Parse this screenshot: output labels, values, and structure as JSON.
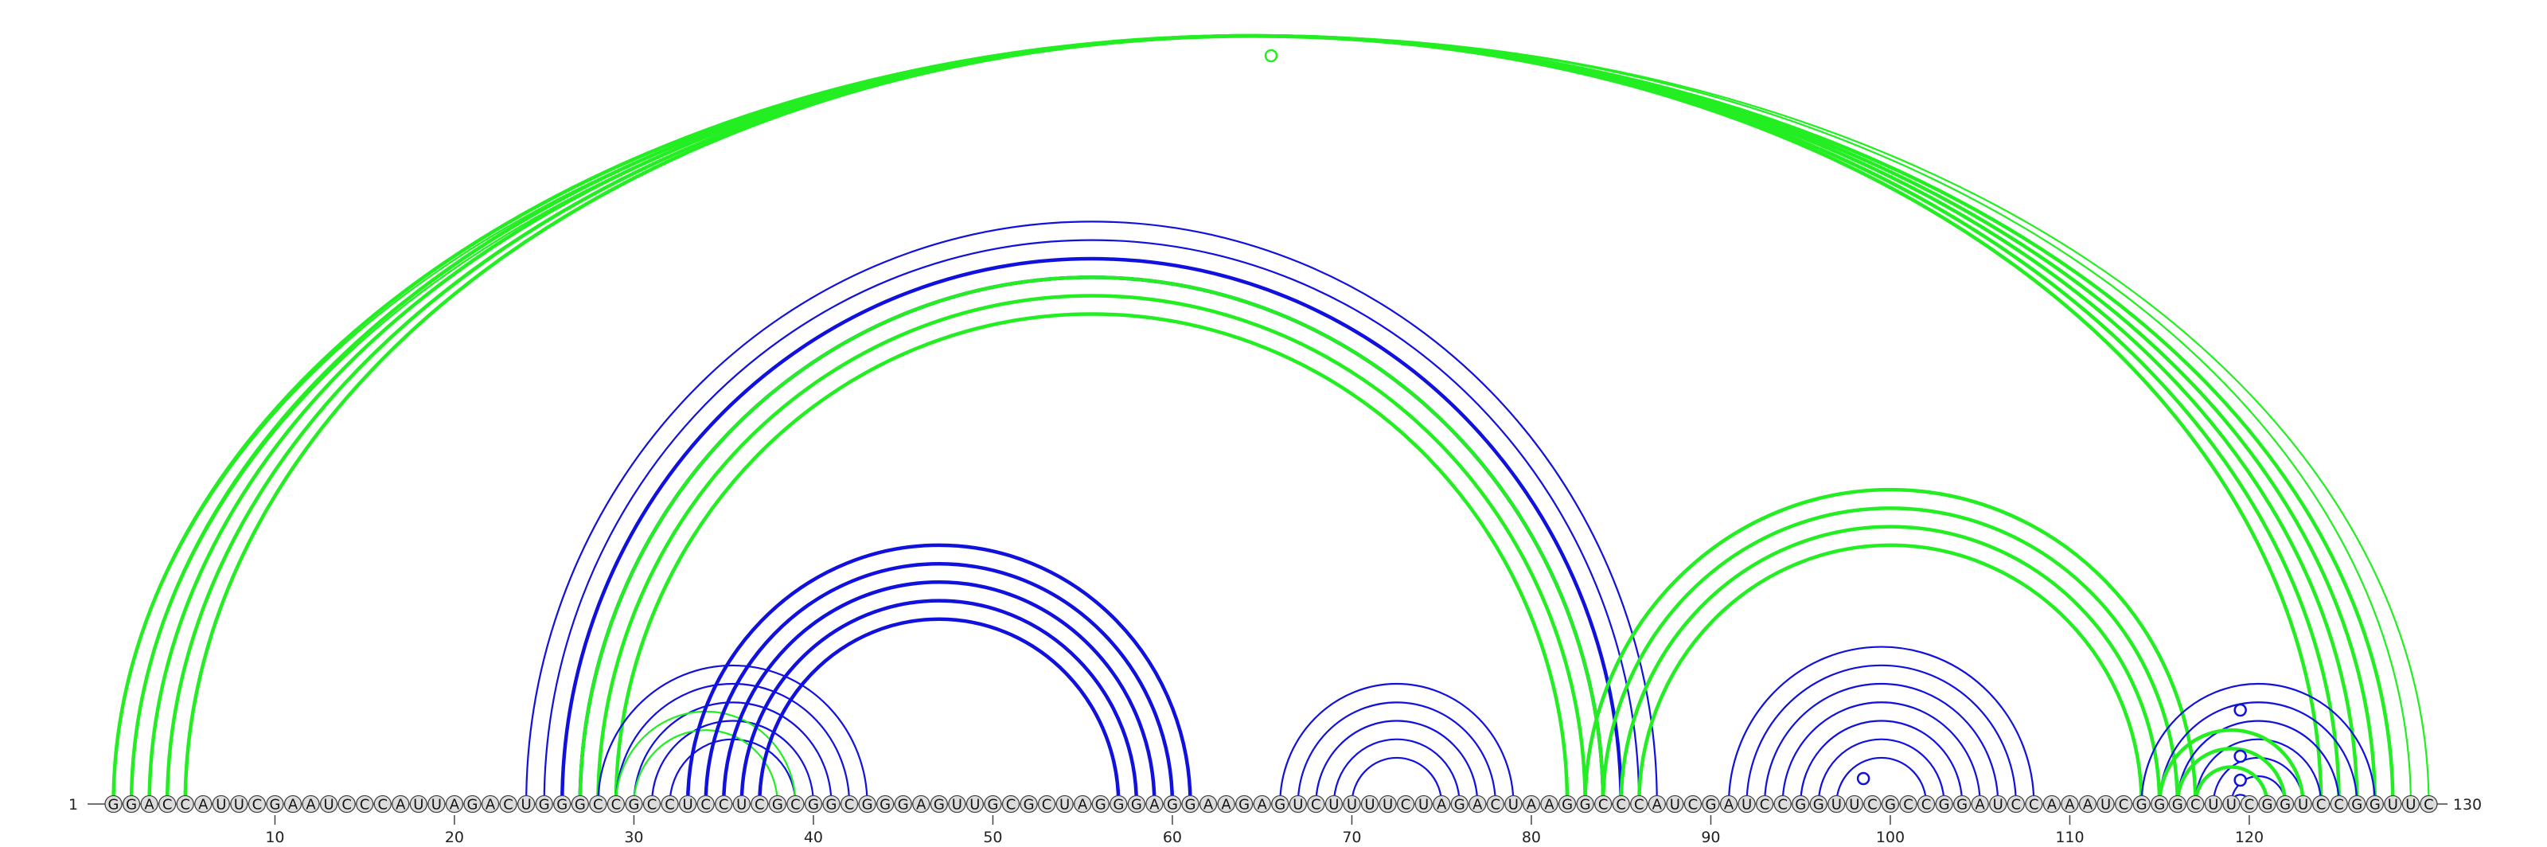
{
  "sequence": "GGACCAUUCGAAUCCCAUUAGACUGGGCCGCCUCCUCGCGGCGGGAGUUGCGCUAGGGAGGAAGAGUCUUUUCUAGACUAAGGCCCAUCGAUCCGGUUCGCCGGAUCCAAAUCGGGCUUCGGUCCGGUUC",
  "start_label": "1",
  "end_label": "130",
  "tick_labels": [
    "10",
    "20",
    "30",
    "40",
    "50",
    "60",
    "70",
    "80",
    "90",
    "100",
    "110",
    "120"
  ],
  "colors": {
    "green": "#22ee22",
    "blue": "#1111dd",
    "base_fill": "#dddddd"
  },
  "markers": [
    {
      "position": 65.5,
      "color": "green"
    },
    {
      "position": 98.5,
      "color": "blue"
    },
    {
      "position": 119.5,
      "color": "blue"
    },
    {
      "position": 119.5,
      "color": "blue"
    },
    {
      "position": 119.5,
      "color": "blue"
    }
  ],
  "chart_data": {
    "type": "arc-diagram",
    "residues": 130,
    "arcs": [
      {
        "color": "green",
        "weight": "thin",
        "i": 1,
        "j": 130
      },
      {
        "color": "green",
        "weight": "thin",
        "i": 2,
        "j": 129
      },
      {
        "color": "green",
        "weight": "thick",
        "i": 1,
        "j": 128
      },
      {
        "color": "green",
        "weight": "thick",
        "i": 2,
        "j": 127
      },
      {
        "color": "green",
        "weight": "thick",
        "i": 3,
        "j": 126
      },
      {
        "color": "green",
        "weight": "thick",
        "i": 4,
        "j": 125
      },
      {
        "color": "green",
        "weight": "thick",
        "i": 5,
        "j": 124
      },
      {
        "color": "blue",
        "weight": "thin",
        "i": 24,
        "j": 87
      },
      {
        "color": "blue",
        "weight": "thin",
        "i": 25,
        "j": 86
      },
      {
        "color": "blue",
        "weight": "thick",
        "i": 26,
        "j": 85
      },
      {
        "color": "blue",
        "weight": "thick",
        "i": 27,
        "j": 84
      },
      {
        "color": "green",
        "weight": "thick",
        "i": 27,
        "j": 84
      },
      {
        "color": "green",
        "weight": "thick",
        "i": 28,
        "j": 83
      },
      {
        "color": "green",
        "weight": "thick",
        "i": 29,
        "j": 82
      },
      {
        "color": "blue",
        "weight": "thin",
        "i": 28,
        "j": 43
      },
      {
        "color": "blue",
        "weight": "thin",
        "i": 29,
        "j": 42
      },
      {
        "color": "blue",
        "weight": "thin",
        "i": 30,
        "j": 41
      },
      {
        "color": "blue",
        "weight": "thin",
        "i": 31,
        "j": 40
      },
      {
        "color": "blue",
        "weight": "thin",
        "i": 32,
        "j": 39
      },
      {
        "color": "green",
        "weight": "thin",
        "i": 29,
        "j": 39
      },
      {
        "color": "green",
        "weight": "thin",
        "i": 30,
        "j": 38
      },
      {
        "color": "blue",
        "weight": "thick",
        "i": 33,
        "j": 61
      },
      {
        "color": "blue",
        "weight": "thick",
        "i": 34,
        "j": 60
      },
      {
        "color": "blue",
        "weight": "thick",
        "i": 35,
        "j": 59
      },
      {
        "color": "blue",
        "weight": "thick",
        "i": 36,
        "j": 58
      },
      {
        "color": "blue",
        "weight": "thick",
        "i": 37,
        "j": 57
      },
      {
        "color": "blue",
        "weight": "thin",
        "i": 66,
        "j": 79
      },
      {
        "color": "blue",
        "weight": "thin",
        "i": 67,
        "j": 78
      },
      {
        "color": "blue",
        "weight": "thin",
        "i": 68,
        "j": 77
      },
      {
        "color": "blue",
        "weight": "thin",
        "i": 69,
        "j": 76
      },
      {
        "color": "blue",
        "weight": "thin",
        "i": 70,
        "j": 75
      },
      {
        "color": "green",
        "weight": "thick",
        "i": 83,
        "j": 117
      },
      {
        "color": "green",
        "weight": "thick",
        "i": 84,
        "j": 116
      },
      {
        "color": "green",
        "weight": "thick",
        "i": 85,
        "j": 115
      },
      {
        "color": "green",
        "weight": "thick",
        "i": 86,
        "j": 114
      },
      {
        "color": "blue",
        "weight": "thin",
        "i": 91,
        "j": 108
      },
      {
        "color": "blue",
        "weight": "thin",
        "i": 92,
        "j": 107
      },
      {
        "color": "blue",
        "weight": "thin",
        "i": 93,
        "j": 106
      },
      {
        "color": "blue",
        "weight": "thin",
        "i": 94,
        "j": 105
      },
      {
        "color": "blue",
        "weight": "thin",
        "i": 95,
        "j": 104
      },
      {
        "color": "blue",
        "weight": "thin",
        "i": 96,
        "j": 103
      },
      {
        "color": "blue",
        "weight": "thin",
        "i": 97,
        "j": 102
      },
      {
        "color": "blue",
        "weight": "thin",
        "i": 114,
        "j": 127
      },
      {
        "color": "blue",
        "weight": "thin",
        "i": 115,
        "j": 126
      },
      {
        "color": "blue",
        "weight": "thin",
        "i": 116,
        "j": 125
      },
      {
        "color": "blue",
        "weight": "thin",
        "i": 117,
        "j": 124
      },
      {
        "color": "blue",
        "weight": "thin",
        "i": 118,
        "j": 123
      },
      {
        "color": "blue",
        "weight": "thin",
        "i": 119,
        "j": 122
      },
      {
        "color": "blue",
        "weight": "thin",
        "i": 119,
        "j": 120
      },
      {
        "color": "green",
        "weight": "thick",
        "i": 115,
        "j": 123
      },
      {
        "color": "green",
        "weight": "thick",
        "i": 116,
        "j": 122
      },
      {
        "color": "green",
        "weight": "thick",
        "i": 117,
        "j": 121
      }
    ]
  }
}
